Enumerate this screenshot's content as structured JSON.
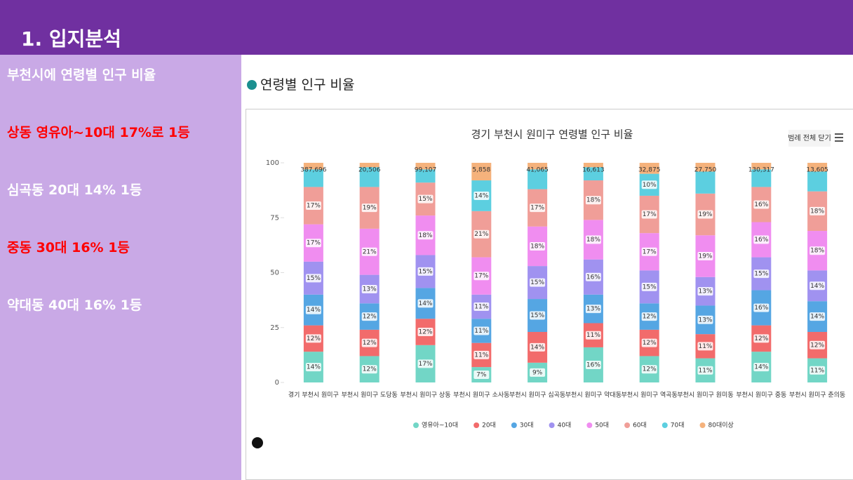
{
  "header": {
    "title": "1. 입지분석"
  },
  "sidebar": {
    "items": [
      {
        "text": "부천시에 연령별 인구 비율",
        "color": "#ffffff"
      },
      {
        "text": "상동 영유아~10대 17%로 1등",
        "color": "#ff0000"
      },
      {
        "text": "심곡동 20대 14% 1등",
        "color": "#ffffff"
      },
      {
        "text": "중동 30대 16% 1등",
        "color": "#ff0000"
      },
      {
        "text": "약대동 40대 16% 1등",
        "color": "#ffffff"
      }
    ]
  },
  "section": {
    "heading": "연령별 인구 비율",
    "button": "범례 전체 닫기"
  },
  "chart_data": {
    "type": "stacked_bar",
    "title": "경기 부천시 원미구 연령별 인구 비율",
    "categories": [
      "경기 부천시 원미구",
      "부천시 원미구 도당동",
      "부천시 원미구 상동",
      "부천시 원미구 소사동",
      "부천시 원미구 심곡동",
      "부천시 원미구 약대동",
      "부천시 원미구 역곡동",
      "부천시 원미구 원미동",
      "부천시 원미구 중동",
      "부천시 원미구 춘의동"
    ],
    "totals": [
      {
        "value": 387696,
        "label": "387,696"
      },
      {
        "value": 20506,
        "label": "20,506"
      },
      {
        "value": 99107,
        "label": "99,107"
      },
      {
        "value": 5858,
        "label": "5,858"
      },
      {
        "value": 41065,
        "label": "41,065"
      },
      {
        "value": 16613,
        "label": "16,613"
      },
      {
        "value": 32875,
        "label": "32,875"
      },
      {
        "value": 27750,
        "label": "27,750"
      },
      {
        "value": 130317,
        "label": "130,317"
      },
      {
        "value": 13605,
        "label": "13,605"
      }
    ],
    "series": [
      {
        "name": "영유아~10대",
        "color": "#72d6c6",
        "values": [
          14,
          12,
          17,
          7,
          9,
          16,
          12,
          11,
          14,
          11
        ],
        "value_labels": [
          "14%",
          "12%",
          "17%",
          "7%",
          "9%",
          "16%",
          "12%",
          "11%",
          "14%",
          "11%"
        ]
      },
      {
        "name": "20대",
        "color": "#f26b6b",
        "values": [
          12,
          12,
          12,
          11,
          14,
          11,
          12,
          11,
          12,
          12
        ],
        "value_labels": [
          "12%",
          "12%",
          "12%",
          "11%",
          "14%",
          "11%",
          "12%",
          "11%",
          "12%",
          "12%"
        ]
      },
      {
        "name": "30대",
        "color": "#55a6e3",
        "values": [
          14,
          12,
          14,
          11,
          15,
          13,
          12,
          13,
          16,
          14
        ],
        "value_labels": [
          "14%",
          "12%",
          "14%",
          "11%",
          "15%",
          "13%",
          "12%",
          "13%",
          "16%",
          "14%"
        ]
      },
      {
        "name": "40대",
        "color": "#a092f0",
        "values": [
          15,
          13,
          15,
          11,
          15,
          16,
          15,
          13,
          15,
          14
        ],
        "value_labels": [
          "15%",
          "13%",
          "15%",
          "11%",
          "15%",
          "16%",
          "15%",
          "13%",
          "15%",
          "14%"
        ]
      },
      {
        "name": "50대",
        "color": "#f08df0",
        "values": [
          17,
          21,
          18,
          17,
          18,
          18,
          17,
          19,
          16,
          18
        ],
        "value_labels": [
          "17%",
          "21%",
          "18%",
          "17%",
          "18%",
          "18%",
          "17%",
          "19%",
          "16%",
          "18%"
        ]
      },
      {
        "name": "60대",
        "color": "#f09e98",
        "values": [
          17,
          19,
          15,
          21,
          17,
          18,
          17,
          19,
          16,
          18
        ],
        "value_labels": [
          "17%",
          "19%",
          "15%",
          "21%",
          "17%",
          "18%",
          "17%",
          "19%",
          "16%",
          "18%"
        ]
      },
      {
        "name": "70대",
        "color": "#5ccfe0",
        "values": [
          8,
          9,
          6,
          14,
          9,
          6,
          10,
          10,
          8,
          9
        ],
        "value_labels": [
          null,
          null,
          null,
          "14%",
          null,
          null,
          "10%",
          null,
          null,
          null
        ]
      },
      {
        "name": "80대이상",
        "color": "#f5b27c",
        "values": [
          3,
          2,
          3,
          8,
          3,
          2,
          5,
          4,
          3,
          4
        ],
        "value_labels": [
          null,
          null,
          null,
          null,
          null,
          null,
          null,
          null,
          null,
          null
        ]
      }
    ],
    "ylim": [
      0,
      100
    ],
    "yticks": [
      0,
      25,
      50,
      75,
      100
    ],
    "grid": false,
    "legend": "bottom"
  }
}
